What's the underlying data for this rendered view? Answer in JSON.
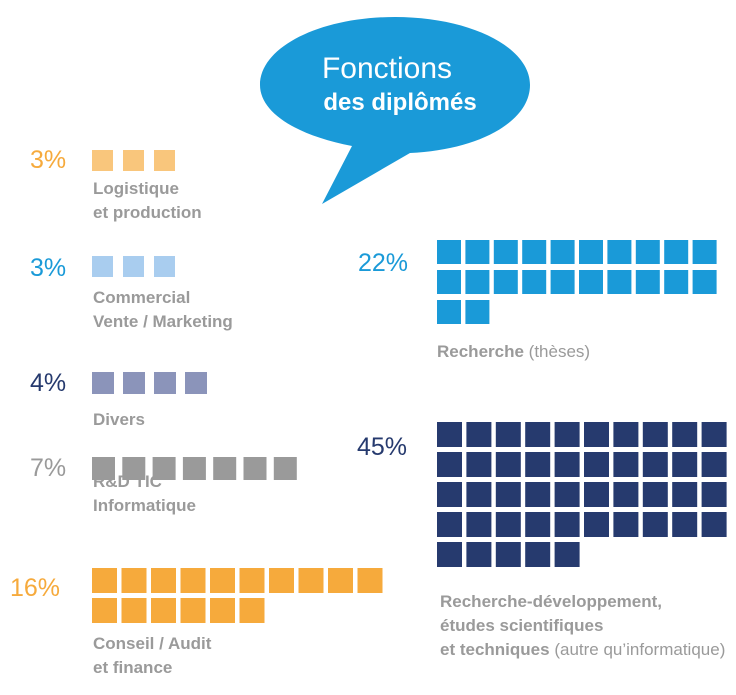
{
  "chart_data": {
    "type": "pictogram",
    "title": "Fonctions",
    "subtitle": "des diplômés",
    "categories": [
      [
        "Logistique",
        "et production"
      ],
      [
        "Commercial",
        "Vente / Marketing"
      ],
      [
        "Divers"
      ],
      [
        "R&D TIC",
        "Informatique"
      ],
      [
        "Conseil / Audit",
        "et finance"
      ],
      [
        "Recherche"
      ],
      [
        "Recherche-développement,",
        "études scientifiques",
        "et techniques"
      ]
    ],
    "notes": [
      null,
      null,
      null,
      null,
      null,
      "(thèses)",
      "(autre qu’informatique)"
    ],
    "values": [
      3,
      3,
      4,
      7,
      16,
      22,
      45
    ],
    "value_labels": [
      "3%",
      "3%",
      "4%",
      "7%",
      "16%",
      "22%",
      "45%"
    ],
    "colors": [
      "#f9c67c",
      "#a9cdef",
      "#8b94ba",
      "#9a9a9a",
      "#f6aa3c",
      "#1a9ad8",
      "#263a6e"
    ],
    "value_label_colors": [
      "#f6aa3c",
      "#1a9ad8",
      "#263a6e",
      "#9a9a9a",
      "#f6aa3c",
      "#1a9ad8",
      "#263a6e"
    ],
    "bubble_color": "#1a9ad8"
  }
}
